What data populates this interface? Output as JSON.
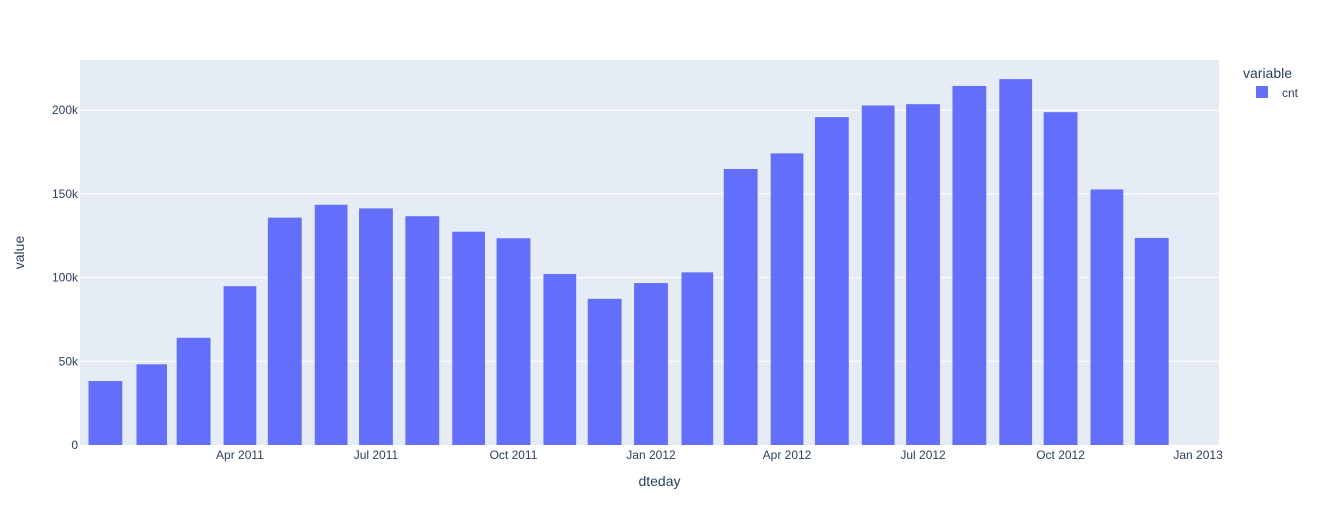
{
  "chart_data": {
    "type": "bar",
    "xlabel": "dteday",
    "ylabel": "value",
    "legend": {
      "title": "variable",
      "placement": "top-right",
      "entries": [
        {
          "name": "cnt",
          "color": "#636efa"
        }
      ]
    },
    "colors": {
      "bar": "#636efa",
      "plot_bg": "#e5ecf6",
      "grid": "#ffffff",
      "text": "#2a3f5f"
    },
    "grid": true,
    "x_range": [
      "2010-12-15",
      "2013-01-15"
    ],
    "ylim": [
      0,
      230000
    ],
    "y_ticks": [
      {
        "value": 0,
        "label": "0"
      },
      {
        "value": 50000,
        "label": "50k"
      },
      {
        "value": 100000,
        "label": "100k"
      },
      {
        "value": 150000,
        "label": "150k"
      },
      {
        "value": 200000,
        "label": "200k"
      }
    ],
    "x_ticks": [
      {
        "date": "2011-04-01",
        "label": "Apr 2011"
      },
      {
        "date": "2011-07-01",
        "label": "Jul 2011"
      },
      {
        "date": "2011-10-01",
        "label": "Oct 2011"
      },
      {
        "date": "2012-01-01",
        "label": "Jan 2012"
      },
      {
        "date": "2012-04-01",
        "label": "Apr 2012"
      },
      {
        "date": "2012-07-01",
        "label": "Jul 2012"
      },
      {
        "date": "2012-10-01",
        "label": "Oct 2012"
      },
      {
        "date": "2013-01-01",
        "label": "Jan 2013"
      }
    ],
    "series": [
      {
        "name": "cnt",
        "x": [
          "2011-01-01",
          "2011-02-01",
          "2011-03-01",
          "2011-04-01",
          "2011-05-01",
          "2011-06-01",
          "2011-07-01",
          "2011-08-01",
          "2011-09-01",
          "2011-10-01",
          "2011-11-01",
          "2011-12-01",
          "2012-01-01",
          "2012-02-01",
          "2012-03-01",
          "2012-04-01",
          "2012-05-01",
          "2012-06-01",
          "2012-07-01",
          "2012-08-01",
          "2012-09-01",
          "2012-10-01",
          "2012-11-01",
          "2012-12-01"
        ],
        "values": [
          38189,
          48215,
          64045,
          94870,
          135821,
          143512,
          141341,
          136691,
          127418,
          123511,
          102167,
          87323,
          96744,
          103137,
          164875,
          174224,
          195865,
          202830,
          203607,
          214503,
          218573,
          198841,
          152664,
          123713
        ]
      }
    ]
  }
}
